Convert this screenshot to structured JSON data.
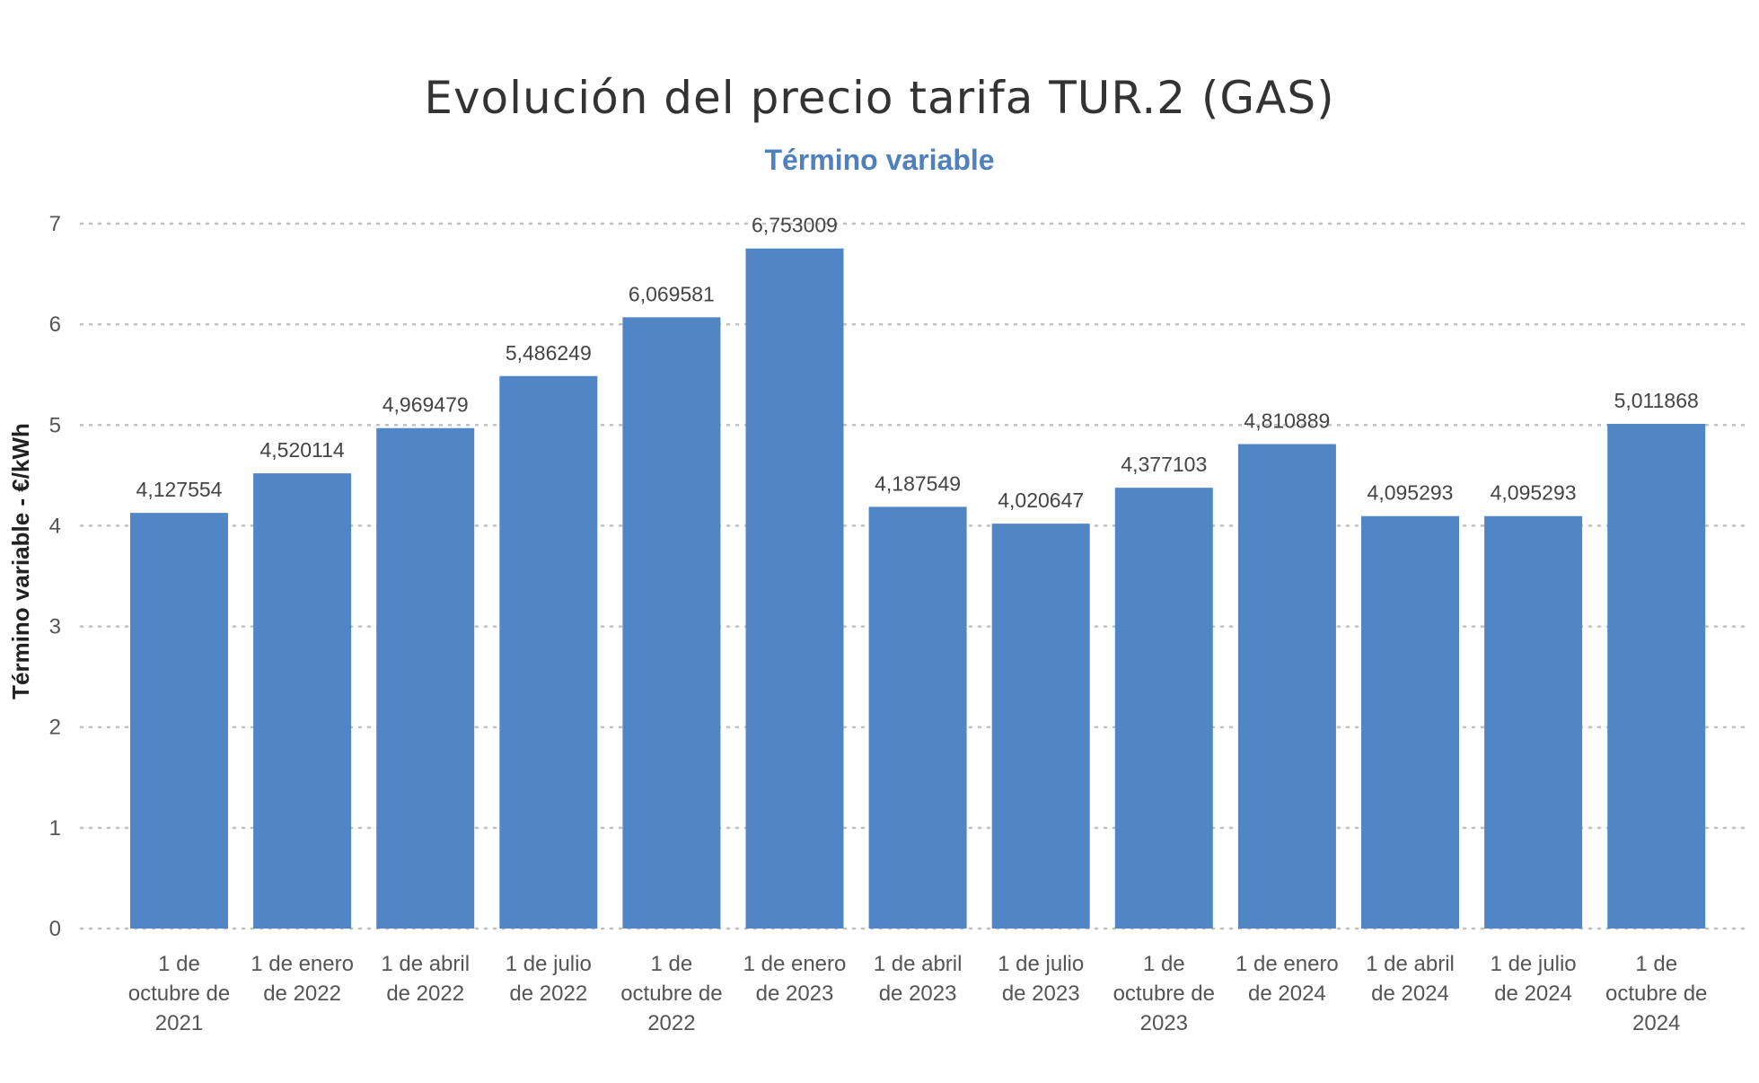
{
  "chart_data": {
    "type": "bar",
    "title": "Evolución del precio tarifa TUR.2 (GAS)",
    "subtitle": "Término variable",
    "ylabel": "Término variable - €/kWh",
    "xlabel": "",
    "ylim": [
      0,
      7
    ],
    "yticks": [
      0,
      1,
      2,
      3,
      4,
      5,
      6,
      7
    ],
    "grid": true,
    "categories": [
      "1 de octubre de 2021",
      "1 de enero de 2022",
      "1 de abril de 2022",
      "1 de julio de 2022",
      "1 de octubre de 2022",
      "1 de enero de 2023",
      "1 de abril de 2023",
      "1 de julio de 2023",
      "1 de octubre de 2023",
      "1 de enero de 2024",
      "1 de abril de 2024",
      "1 de julio de 2024",
      "1 de octubre de 2024"
    ],
    "category_lines": [
      [
        "1 de",
        "octubre de",
        "2021"
      ],
      [
        "1 de enero",
        "de 2022"
      ],
      [
        "1 de abril",
        "de 2022"
      ],
      [
        "1 de julio",
        "de 2022"
      ],
      [
        "1 de",
        "octubre de",
        "2022"
      ],
      [
        "1 de enero",
        "de 2023"
      ],
      [
        "1 de abril",
        "de 2023"
      ],
      [
        "1 de julio",
        "de 2023"
      ],
      [
        "1 de",
        "octubre de",
        "2023"
      ],
      [
        "1 de enero",
        "de 2024"
      ],
      [
        "1 de abril",
        "de 2024"
      ],
      [
        "1 de julio",
        "de 2024"
      ],
      [
        "1 de",
        "octubre de",
        "2024"
      ]
    ],
    "values": [
      4.127554,
      4.520114,
      4.969479,
      5.486249,
      6.069581,
      6.753009,
      4.187549,
      4.020647,
      4.377103,
      4.810889,
      4.095293,
      4.095293,
      5.011868
    ],
    "data_labels": [
      "4,127554",
      "4,520114",
      "4,969479",
      "5,486249",
      "6,069581",
      "6,753009",
      "4,187549",
      "4,020647",
      "4,377103",
      "4,810889",
      "4,095293",
      "4,095293",
      "5,011868"
    ],
    "colors": {
      "bar": "#5086c5",
      "subtitle": "#4e81bd",
      "grid": "#c0c0c0"
    }
  }
}
